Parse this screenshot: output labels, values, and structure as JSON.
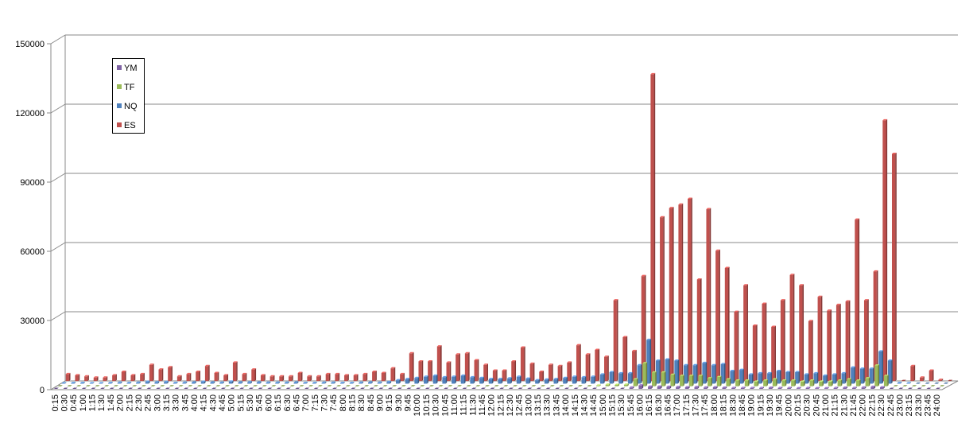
{
  "chart_data": {
    "type": "bar",
    "title": "",
    "xlabel": "",
    "ylabel": "",
    "ylim": [
      0,
      150000
    ],
    "yticks": [
      "0",
      "30000",
      "60000",
      "90000",
      "120000",
      "150000"
    ],
    "grid": true,
    "legend_position": "top-left",
    "categories": [
      "0:15",
      "0:30",
      "0:45",
      "1:00",
      "1:15",
      "1:30",
      "1:45",
      "2:00",
      "2:15",
      "2:30",
      "2:45",
      "3:00",
      "3:15",
      "3:30",
      "3:45",
      "4:00",
      "4:15",
      "4:30",
      "4:45",
      "5:00",
      "5:15",
      "5:30",
      "5:45",
      "6:00",
      "6:15",
      "6:30",
      "6:45",
      "7:00",
      "7:15",
      "7:30",
      "7:45",
      "8:00",
      "8:15",
      "8:30",
      "8:45",
      "9:00",
      "9:15",
      "9:30",
      "9:45",
      "10:00",
      "10:15",
      "10:30",
      "10:45",
      "11:00",
      "11:15",
      "11:30",
      "11:45",
      "12:00",
      "12:15",
      "12:30",
      "12:45",
      "13:00",
      "13:15",
      "13:30",
      "13:45",
      "14:00",
      "14:15",
      "14:30",
      "14:45",
      "15:00",
      "15:15",
      "15:30",
      "15:45",
      "16:00",
      "16:15",
      "16:30",
      "16:45",
      "17:00",
      "17:15",
      "17:30",
      "17:45",
      "18:00",
      "18:15",
      "18:30",
      "18:45",
      "19:00",
      "19:15",
      "19:30",
      "19:45",
      "20:00",
      "20:15",
      "20:30",
      "20:45",
      "21:00",
      "21:15",
      "21:30",
      "21:45",
      "22:00",
      "22:15",
      "22:30",
      "22:45",
      "23:00",
      "23:15",
      "23:30",
      "23:45",
      "24:00"
    ],
    "series": [
      {
        "name": "YM",
        "color": "#7F63A3",
        "values": [
          0,
          0,
          0,
          0,
          0,
          0,
          0,
          0,
          0,
          0,
          0,
          0,
          0,
          0,
          0,
          0,
          0,
          0,
          0,
          0,
          0,
          0,
          0,
          0,
          0,
          0,
          0,
          0,
          0,
          0,
          0,
          0,
          0,
          0,
          0,
          0,
          0,
          0,
          0,
          0,
          0,
          0,
          0,
          0,
          0,
          0,
          0,
          0,
          0,
          0,
          0,
          0,
          0,
          0,
          0,
          0,
          0,
          0,
          0,
          0,
          0,
          0,
          600,
          1500,
          1000,
          1000,
          900,
          800,
          700,
          800,
          600,
          700,
          500,
          400,
          400,
          400,
          400,
          500,
          400,
          400,
          300,
          400,
          300,
          300,
          400,
          500,
          400,
          600,
          900,
          700,
          0,
          0,
          0,
          0,
          0,
          0
        ]
      },
      {
        "name": "TF",
        "color": "#9BBB59",
        "values": [
          0,
          0,
          0,
          0,
          0,
          0,
          0,
          0,
          0,
          0,
          0,
          0,
          0,
          0,
          0,
          0,
          0,
          0,
          0,
          0,
          0,
          0,
          0,
          0,
          0,
          0,
          0,
          0,
          0,
          0,
          0,
          0,
          0,
          0,
          0,
          0,
          0,
          0,
          0,
          0,
          0,
          0,
          0,
          0,
          0,
          0,
          0,
          0,
          0,
          0,
          0,
          0,
          0,
          0,
          0,
          0,
          0,
          0,
          300,
          700,
          600,
          700,
          3000,
          10000,
          6000,
          6000,
          5000,
          4500,
          4500,
          4500,
          3500,
          4000,
          3000,
          2500,
          2500,
          2000,
          2500,
          3000,
          2500,
          2500,
          2000,
          2500,
          2000,
          2000,
          2500,
          3000,
          2500,
          3500,
          9000,
          4500,
          0,
          0,
          0,
          0,
          0,
          0
        ]
      },
      {
        "name": "NQ",
        "color": "#4F81BD",
        "values": [
          200,
          300,
          300,
          200,
          200,
          300,
          400,
          300,
          400,
          800,
          600,
          700,
          300,
          400,
          500,
          800,
          500,
          400,
          900,
          500,
          600,
          500,
          400,
          400,
          400,
          500,
          300,
          300,
          400,
          400,
          300,
          300,
          400,
          500,
          400,
          700,
          1500,
          2000,
          2500,
          3000,
          3500,
          2800,
          3000,
          3500,
          2800,
          2500,
          2000,
          2000,
          2300,
          3000,
          2200,
          1500,
          1800,
          2000,
          2500,
          3000,
          2800,
          3000,
          4000,
          5000,
          4500,
          4500,
          8000,
          19000,
          10000,
          10500,
          10000,
          8000,
          8000,
          9000,
          8000,
          8500,
          5500,
          6000,
          4000,
          4500,
          4500,
          5500,
          5000,
          5000,
          4000,
          4500,
          3500,
          4000,
          4500,
          7000,
          6500,
          6500,
          14000,
          10000,
          300,
          200,
          100,
          100,
          100,
          0
        ]
      },
      {
        "name": "ES",
        "color": "#C0504D",
        "values": [
          3000,
          2500,
          2000,
          1500,
          1500,
          2500,
          4000,
          2500,
          3000,
          7000,
          5000,
          6000,
          2000,
          3000,
          4000,
          6500,
          3500,
          2500,
          8000,
          3000,
          5000,
          2500,
          2000,
          2000,
          2000,
          3500,
          2000,
          2000,
          3000,
          3000,
          2500,
          2500,
          3000,
          4000,
          3500,
          5500,
          3000,
          12000,
          8500,
          8500,
          15000,
          8000,
          11500,
          12000,
          9000,
          7000,
          4500,
          4500,
          8500,
          14500,
          7500,
          4000,
          7000,
          6500,
          8000,
          15500,
          11500,
          13500,
          10500,
          35000,
          19000,
          13000,
          45500,
          133000,
          71000,
          75000,
          76500,
          79000,
          44000,
          74500,
          56500,
          49000,
          30000,
          41500,
          24000,
          33500,
          23500,
          35000,
          46000,
          41500,
          26000,
          36500,
          30500,
          33000,
          34500,
          70000,
          35000,
          47500,
          113000,
          98500,
          0,
          6500,
          1500,
          4500,
          500,
          0
        ]
      }
    ]
  }
}
